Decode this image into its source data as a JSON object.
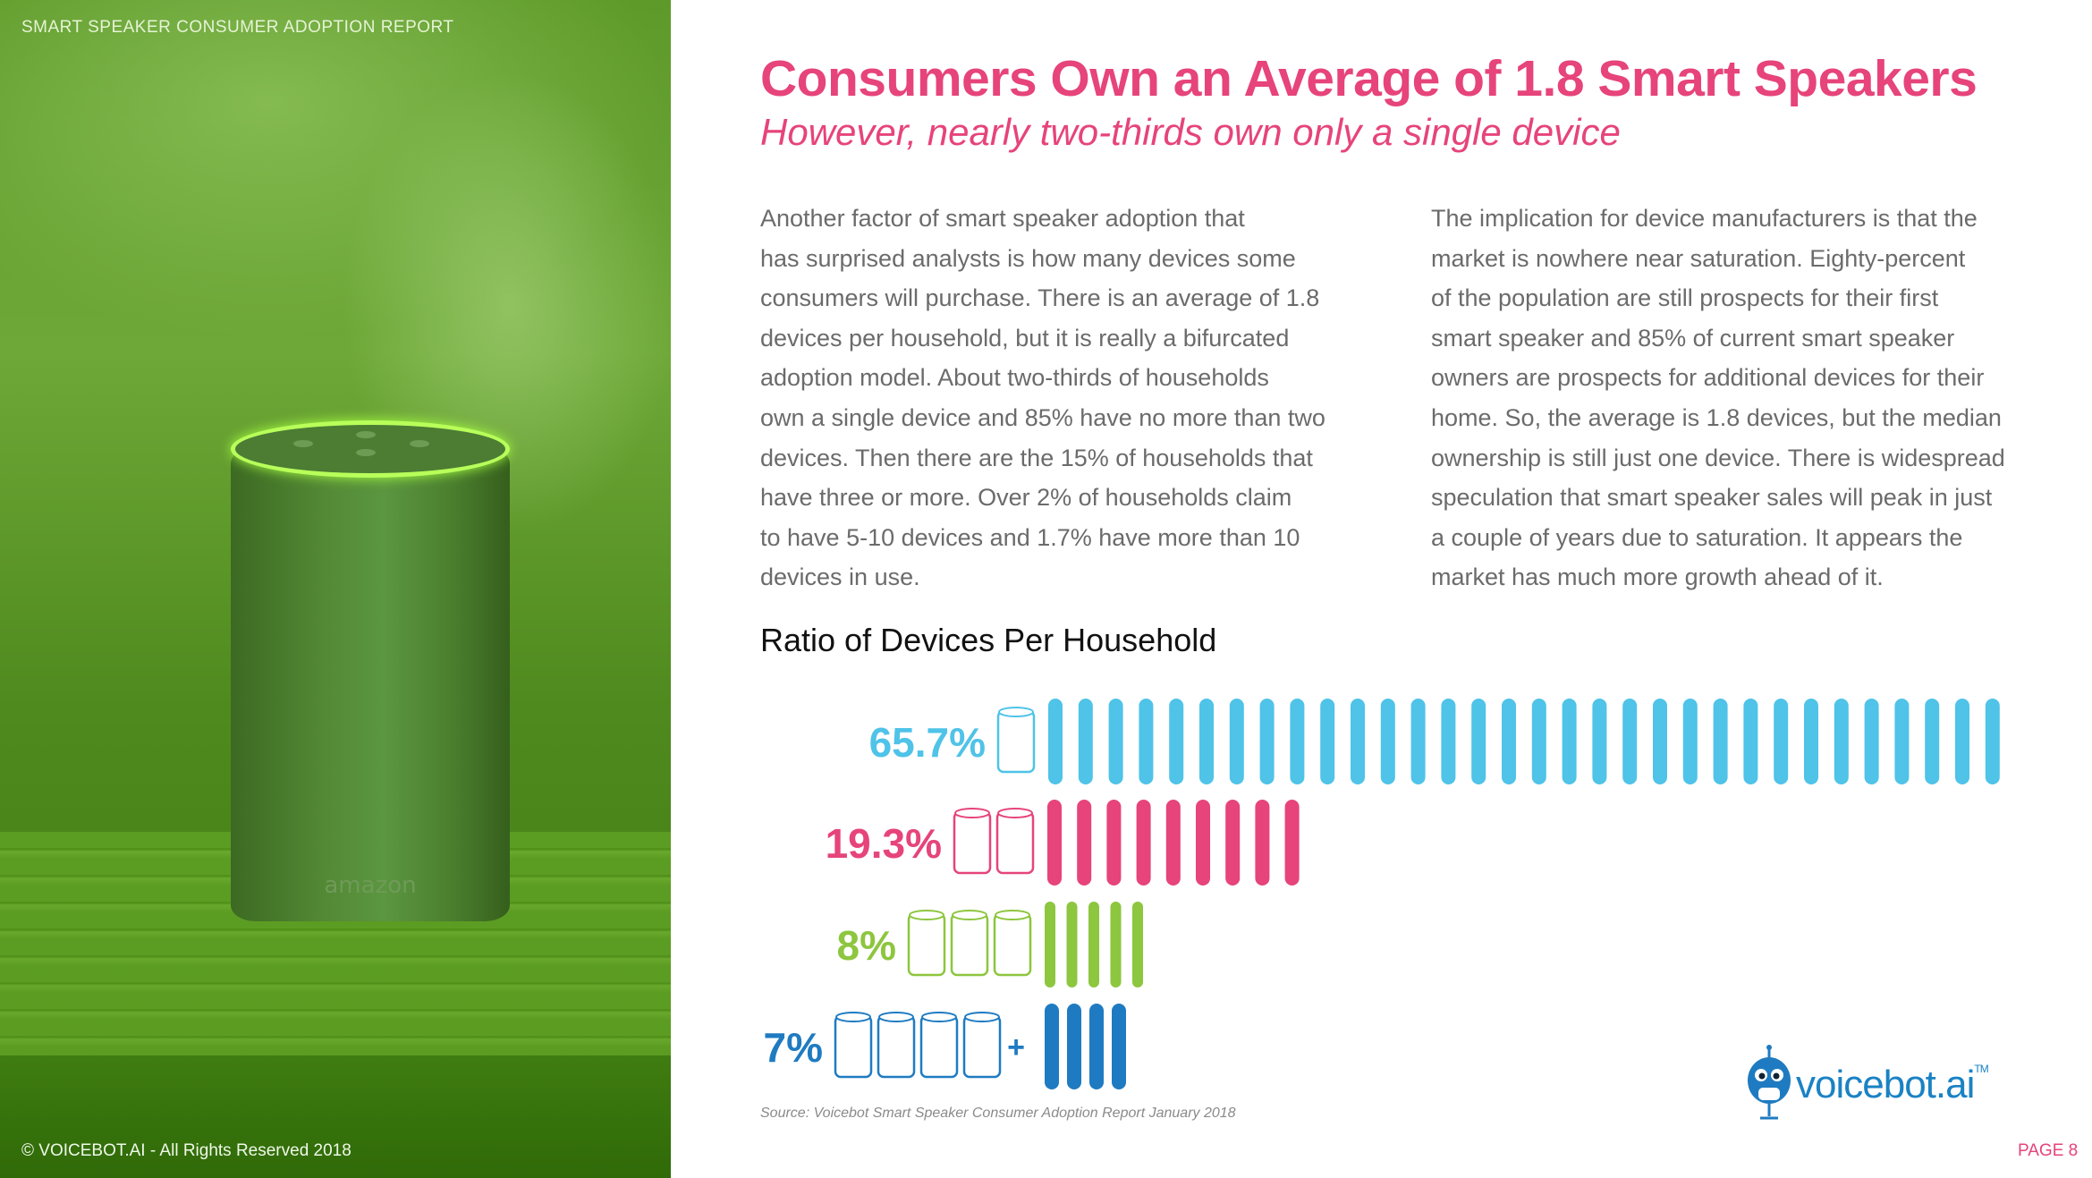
{
  "header": {
    "report_title": "SMART SPEAKER CONSUMER ADOPTION REPORT"
  },
  "footer": {
    "copyright": "© VOICEBOT.AI - All Rights Reserved 2018",
    "page": "PAGE 8"
  },
  "speaker_brand": "amazon",
  "main": {
    "title": "Consumers Own an Average of 1.8 Smart Speakers",
    "subtitle": "However, nearly two-thirds own only a single device",
    "column1_lines": [
      "Another factor of smart speaker adoption that",
      "has surprised analysts is how many devices some",
      "consumers will purchase. There is an average of 1.8",
      "devices per household, but it is really a bifurcated",
      "adoption model. About two-thirds of households",
      "own a single device and 85% have no more than two",
      "devices. Then there are the 15% of households that",
      "have three or more. Over 2% of households claim",
      "to have 5-10 devices and 1.7% have more than 10",
      "devices in use."
    ],
    "column2_lines": [
      "The implication for device manufacturers is that the",
      "market is nowhere near saturation. Eighty-percent",
      "of the population are still prospects for their first",
      "smart speaker and 85% of current smart speaker",
      "owners are prospects for additional devices for their",
      "home. So, the average is 1.8 devices, but the median",
      "ownership is still just one device. There is widespread",
      "speculation that smart speaker sales will peak in just",
      "a couple of years due to saturation. It appears the",
      "market has much more growth ahead of it."
    ],
    "source": "Source: Voicebot Smart Speaker Consumer Adoption Report January 2018"
  },
  "chart_data": {
    "type": "bar",
    "title": "Ratio of Devices Per Household",
    "categories": [
      "1 device",
      "2 devices",
      "3 devices",
      "4+ devices"
    ],
    "values": [
      65.7,
      19.3,
      8,
      7
    ],
    "labels": [
      "65.7%",
      "19.3%",
      "8%",
      "7%"
    ],
    "device_icons": [
      1,
      2,
      3,
      4
    ],
    "plus_marker": "+",
    "colors": [
      "#4fc3e8",
      "#e6447a",
      "#8dc63f",
      "#1f7bc1"
    ],
    "stripe_counts": [
      32,
      9,
      5,
      4
    ]
  },
  "logo": {
    "text": "voicebot.ai",
    "tm": "TM"
  }
}
